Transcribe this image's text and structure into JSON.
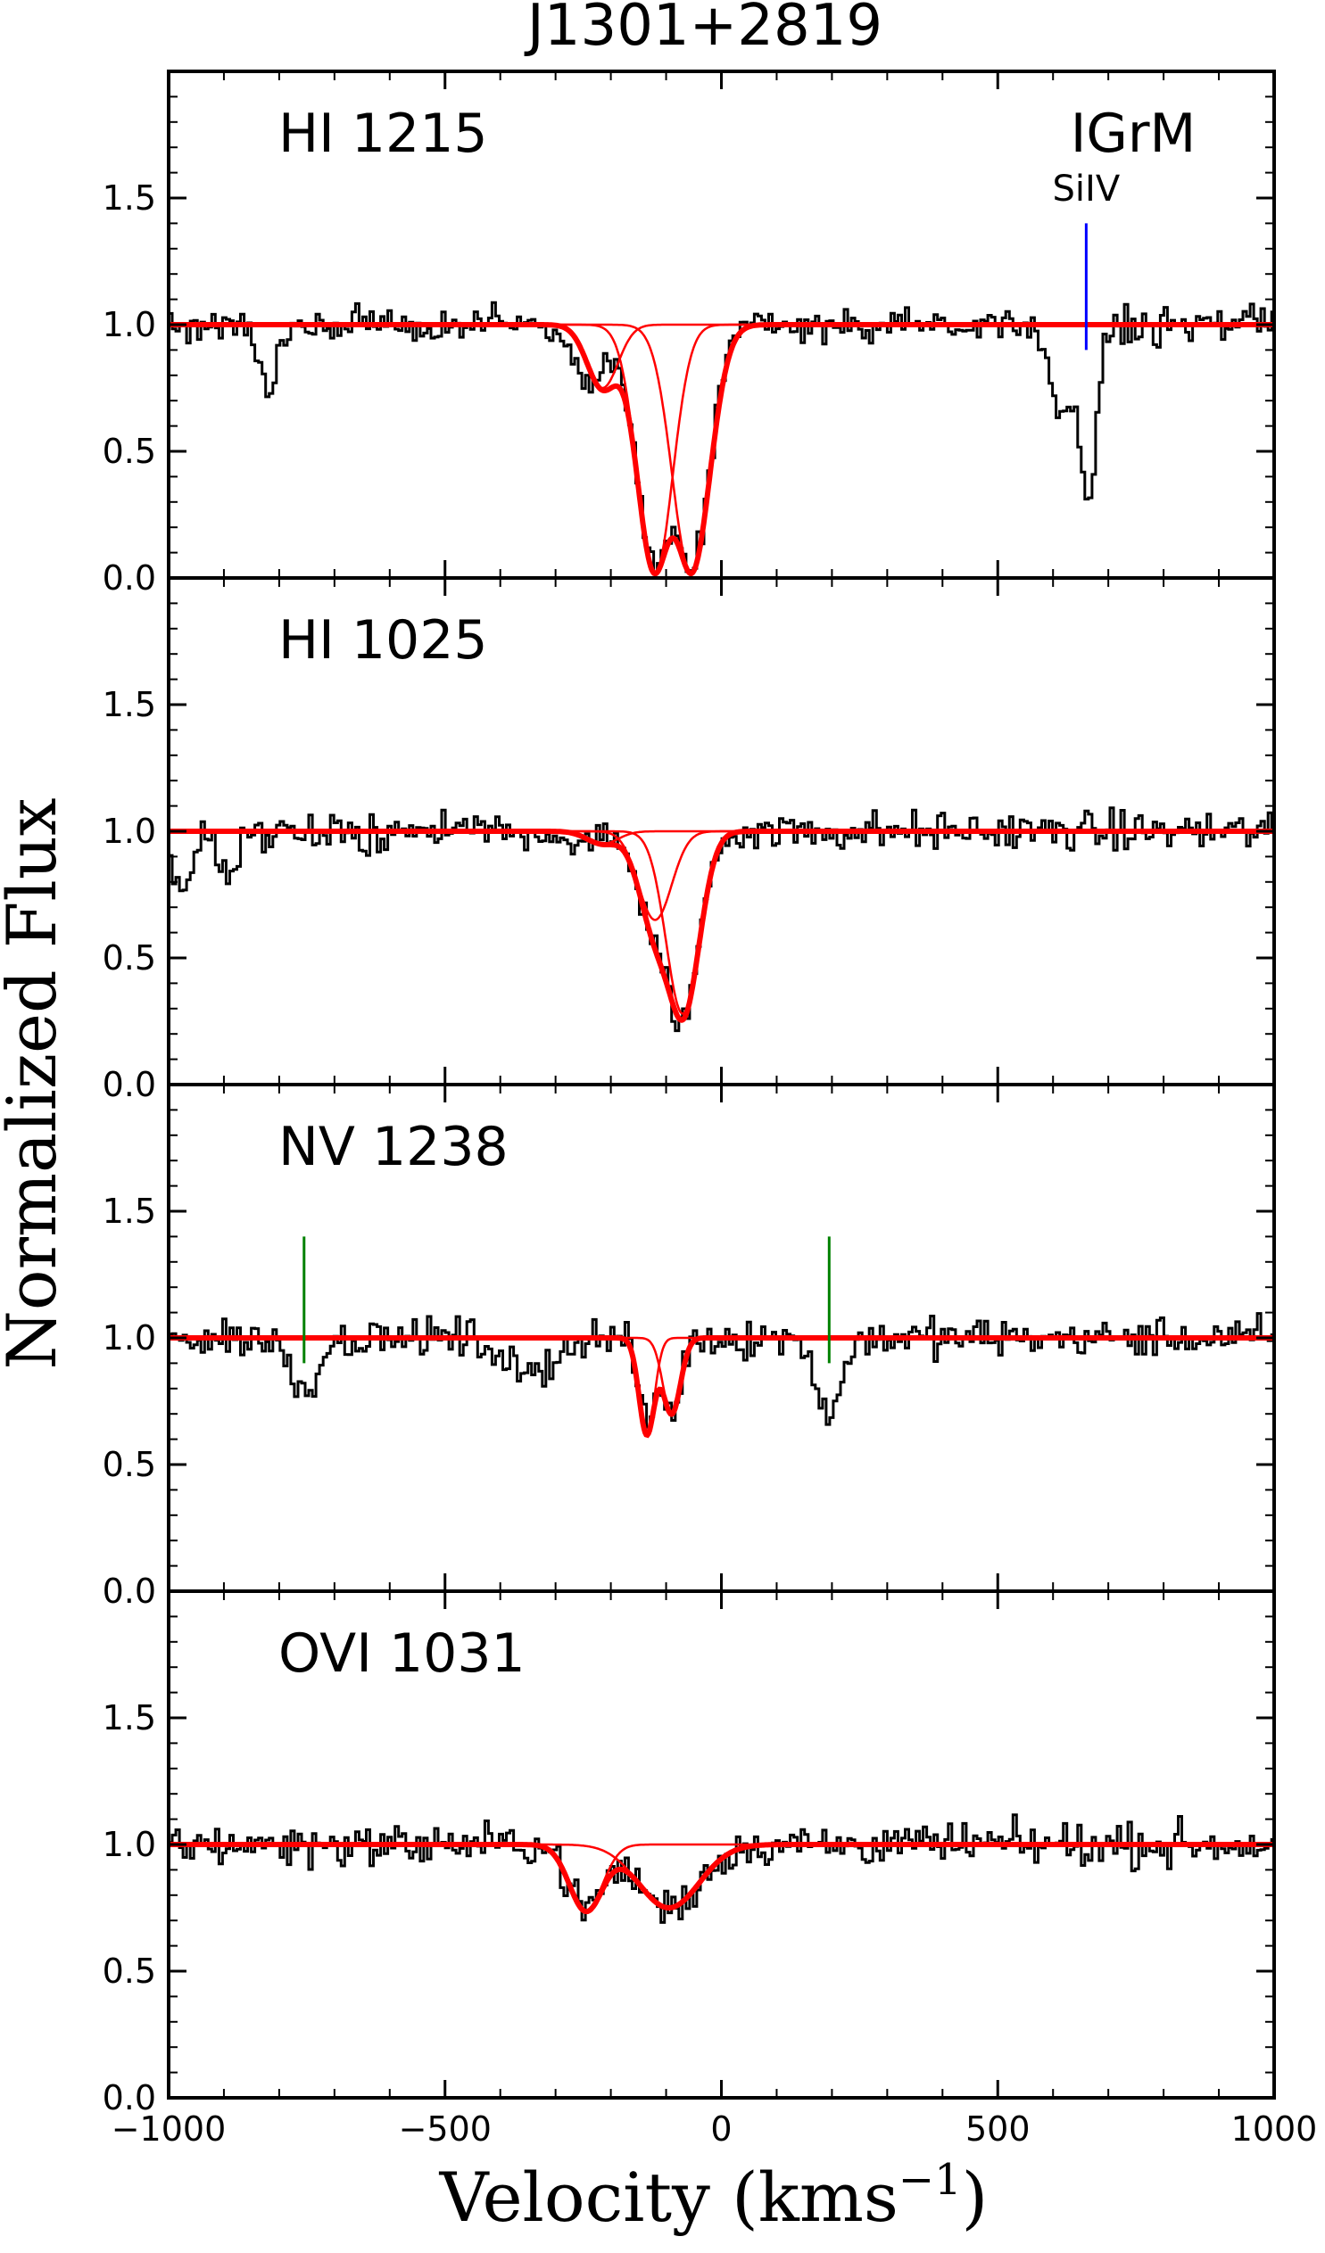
{
  "title": "J1301+2819",
  "xlabel": "Velocity (kms",
  "xlabel_sup": "−1",
  "xlabel_close": ")",
  "ylabel": "Normalized Flux",
  "colors": {
    "data": "#000000",
    "fit_total": "#ff0000",
    "fit_component": "#ff0000",
    "siiv_marker": "#0000ff",
    "tick_marker": "#008000"
  },
  "chart_data": {
    "type": "line",
    "xlim": [
      -1000,
      1000
    ],
    "ylim": [
      0,
      2
    ],
    "x_ticks": [
      -1000,
      -500,
      0,
      500,
      1000
    ],
    "x_tick_labels": [
      "−1000",
      "−500",
      "0",
      "500",
      "1000"
    ],
    "y_ticks": [
      0,
      0.5,
      1,
      1.5
    ],
    "y_tick_labels": [
      "0.0",
      "0.5",
      "1.0",
      "1.5"
    ],
    "grid": false,
    "panels": [
      {
        "label": "HI 1215",
        "annotations": [
          {
            "text": "IGrM",
            "color": "#000000"
          },
          {
            "text": "SiIV",
            "color": "#0000ff",
            "line_v": 660,
            "line_from": 0.9,
            "line_to": 1.4
          }
        ],
        "components": [
          {
            "center": -215,
            "depth": 0.25,
            "width": 28
          },
          {
            "center": -120,
            "depth": 0.98,
            "width": 32
          },
          {
            "center": -55,
            "depth": 0.98,
            "width": 34
          }
        ],
        "absorption": [
          {
            "center": -820,
            "depth": 0.28,
            "width": 16
          },
          {
            "center": -240,
            "depth": 0.22,
            "width": 30
          },
          {
            "center": -120,
            "depth": 0.96,
            "width": 32
          },
          {
            "center": -55,
            "depth": 0.97,
            "width": 34
          },
          {
            "center": 620,
            "depth": 0.35,
            "width": 25
          },
          {
            "center": 665,
            "depth": 0.68,
            "width": 14
          }
        ],
        "noise": 0.065
      },
      {
        "label": "HI 1025",
        "annotations": [],
        "components": [
          {
            "center": -215,
            "depth": 0.05,
            "width": 28
          },
          {
            "center": -120,
            "depth": 0.35,
            "width": 30
          },
          {
            "center": -70,
            "depth": 0.72,
            "width": 30
          }
        ],
        "absorption": [
          {
            "center": -975,
            "depth": 0.25,
            "width": 18
          },
          {
            "center": -890,
            "depth": 0.2,
            "width": 15
          },
          {
            "center": -255,
            "depth": 0.08,
            "width": 20
          },
          {
            "center": -120,
            "depth": 0.36,
            "width": 30
          },
          {
            "center": -70,
            "depth": 0.72,
            "width": 30
          }
        ],
        "noise": 0.075
      },
      {
        "label": "NV 1238",
        "annotations": [
          {
            "color": "#008000",
            "line_v": -755,
            "line_from": 0.9,
            "line_to": 1.4
          },
          {
            "color": "#008000",
            "line_v": 195,
            "line_from": 0.9,
            "line_to": 1.4
          }
        ],
        "components": [
          {
            "center": -135,
            "depth": 0.38,
            "width": 14
          },
          {
            "center": -90,
            "depth": 0.3,
            "width": 16
          }
        ],
        "absorption": [
          {
            "center": -755,
            "depth": 0.2,
            "width": 25
          },
          {
            "center": -350,
            "depth": 0.15,
            "width": 40
          },
          {
            "center": -135,
            "depth": 0.35,
            "width": 14
          },
          {
            "center": -90,
            "depth": 0.3,
            "width": 16
          },
          {
            "center": 195,
            "depth": 0.3,
            "width": 22
          }
        ],
        "noise": 0.075
      },
      {
        "label": "OVI 1031",
        "annotations": [],
        "components": [
          {
            "center": -245,
            "depth": 0.26,
            "width": 30
          },
          {
            "center": -95,
            "depth": 0.25,
            "width": 55
          }
        ],
        "absorption": [
          {
            "center": -245,
            "depth": 0.25,
            "width": 30
          },
          {
            "center": -95,
            "depth": 0.25,
            "width": 55
          }
        ],
        "noise": 0.08
      }
    ]
  }
}
